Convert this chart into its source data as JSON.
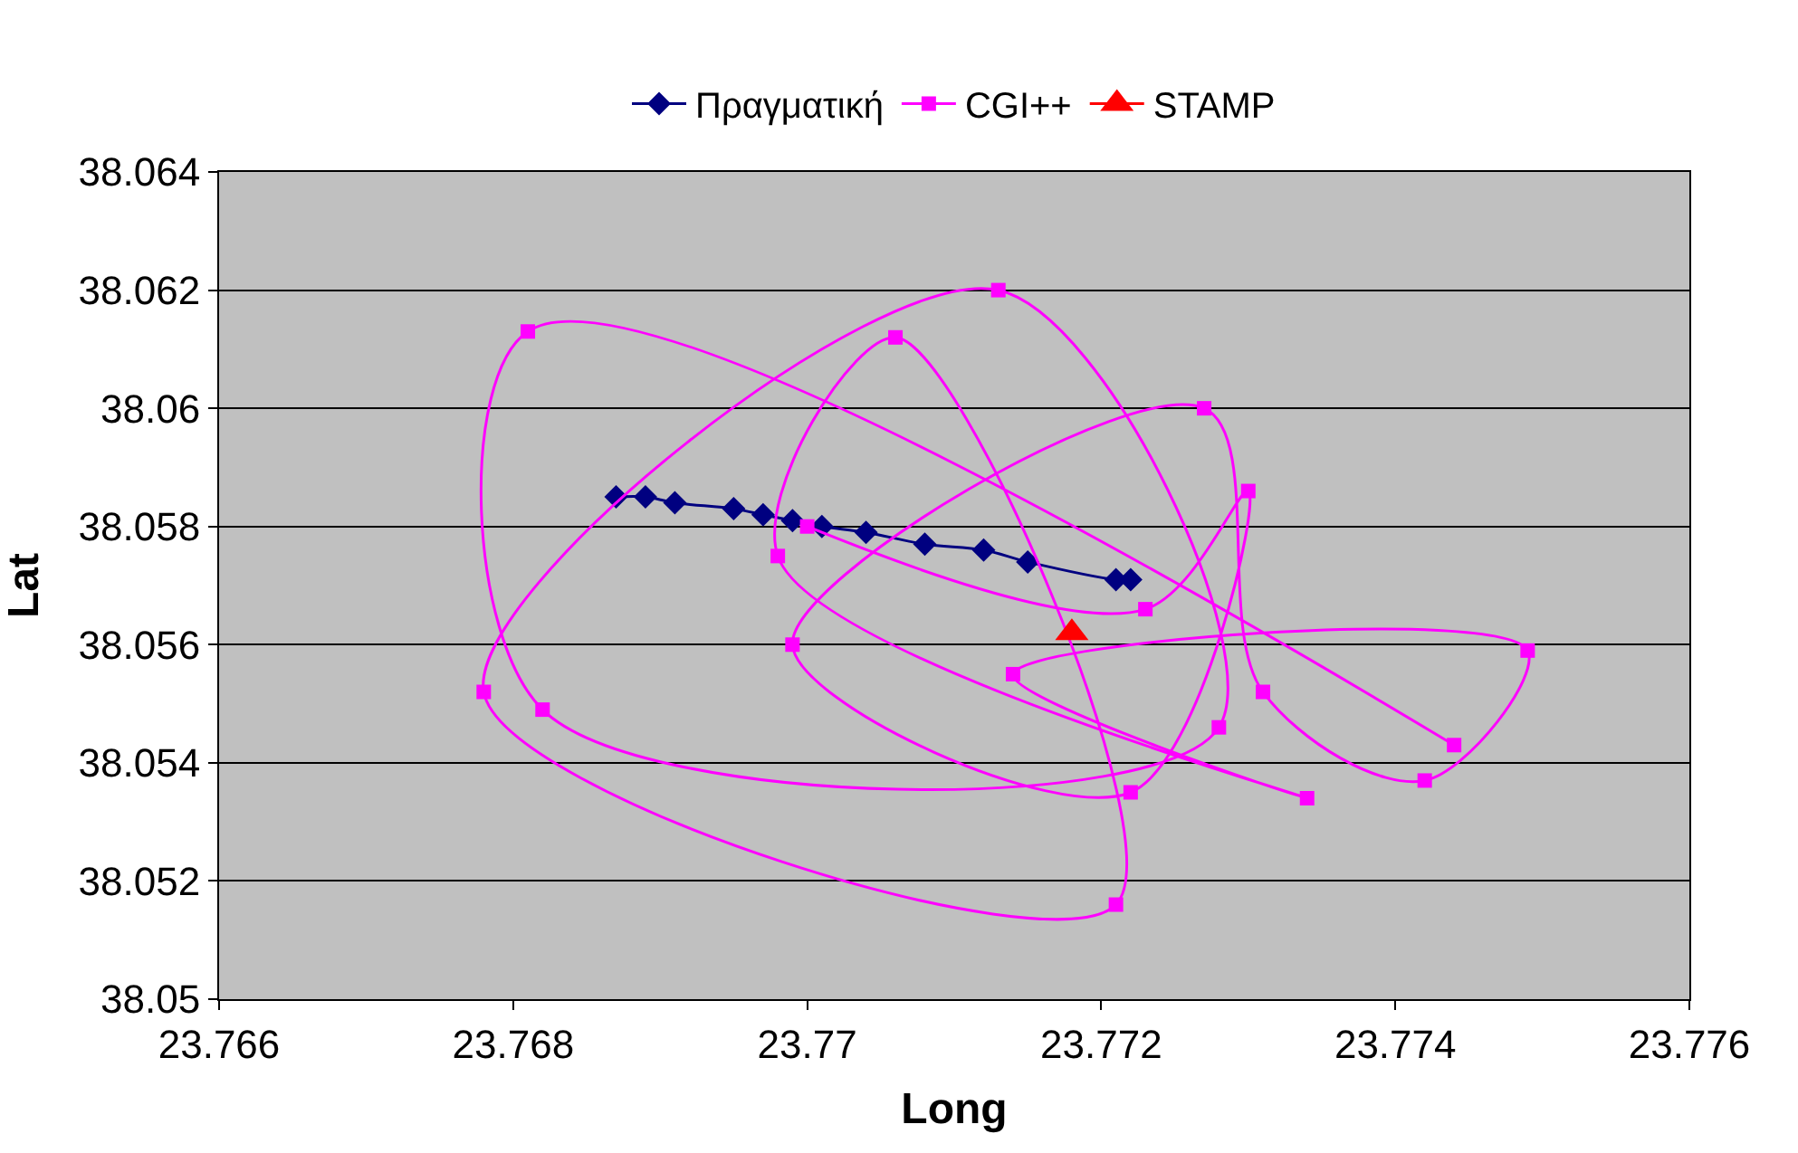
{
  "chart_data": {
    "type": "line",
    "xlabel": "Long",
    "ylabel": "Lat",
    "xlim": [
      23.766,
      23.776
    ],
    "xticks": [
      23.766,
      23.768,
      23.77,
      23.772,
      23.774,
      23.776
    ],
    "ylim": [
      38.05,
      38.064
    ],
    "yticks": [
      38.05,
      38.052,
      38.054,
      38.056,
      38.058,
      38.06,
      38.062,
      38.064
    ],
    "grid": "y",
    "legend": "top",
    "series": [
      {
        "name": "Πραγματική",
        "color": "#000080",
        "marker": "diamond",
        "line_style": "solid",
        "x": [
          23.7687,
          23.7689,
          23.7691,
          23.7695,
          23.7697,
          23.7699,
          23.7701,
          23.7704,
          23.7708,
          23.7712,
          23.7715,
          23.7721,
          23.7722
        ],
        "values": [
          38.0585,
          38.0585,
          38.0584,
          38.0583,
          38.0582,
          38.0581,
          38.058,
          38.0579,
          38.0577,
          38.0576,
          38.0574,
          38.0571,
          38.0571
        ]
      },
      {
        "name": "CGI++",
        "color": "#ff00ff",
        "marker": "square",
        "line_style": "solid",
        "x": [
          23.77,
          23.7723,
          23.773,
          23.7722,
          23.7699,
          23.7727,
          23.7731,
          23.7742,
          23.7749,
          23.7714,
          23.7734,
          23.7698,
          23.7706,
          23.7721,
          23.7678,
          23.7713,
          23.7728,
          23.7682,
          23.7681,
          23.7744
        ],
        "values": [
          38.058,
          38.0566,
          38.0586,
          38.0535,
          38.056,
          38.06,
          38.0552,
          38.0537,
          38.0559,
          38.0555,
          38.0534,
          38.0575,
          38.0612,
          38.0516,
          38.0552,
          38.062,
          38.0546,
          38.0549,
          38.0613,
          38.0543
        ]
      },
      {
        "name": "STAMP",
        "color": "#ff0000",
        "marker": "triangle",
        "line_style": "solid",
        "x": [
          23.7718
        ],
        "values": [
          38.0562
        ]
      }
    ]
  }
}
